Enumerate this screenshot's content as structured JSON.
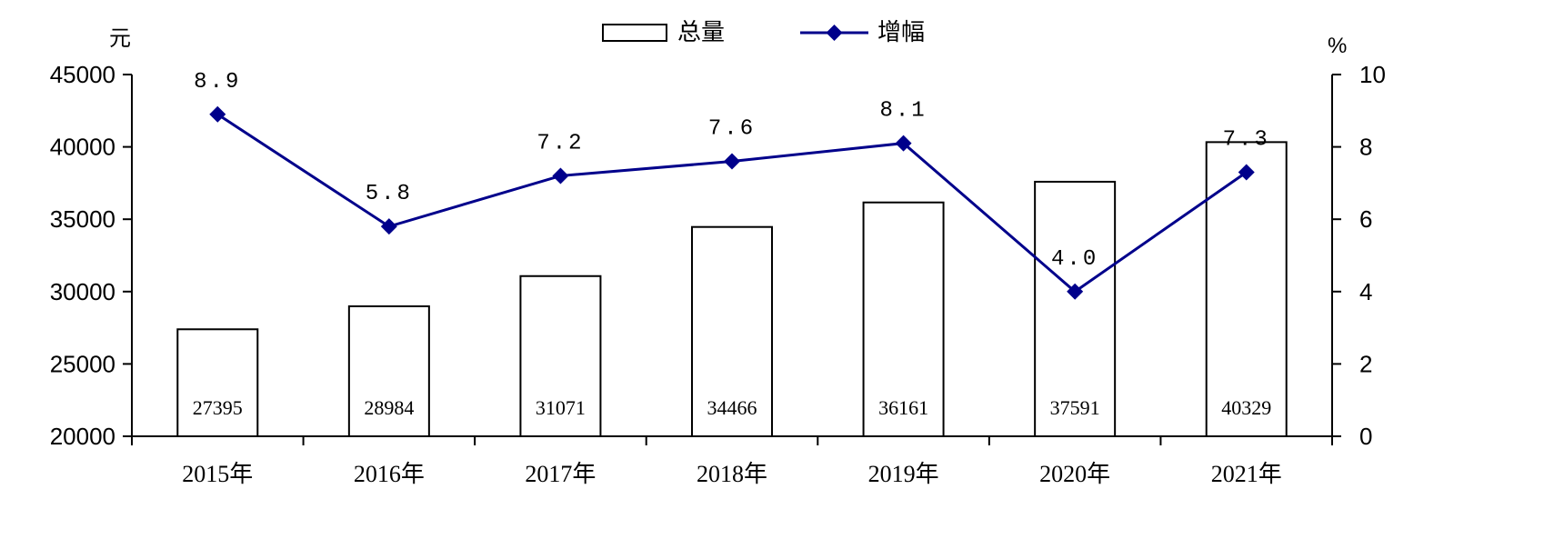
{
  "chart_data": {
    "type": "bar",
    "categories": [
      "2015年",
      "2016年",
      "2017年",
      "2018年",
      "2019年",
      "2020年",
      "2021年"
    ],
    "left_axis": {
      "unit": "元",
      "ylim": [
        20000,
        45000
      ],
      "ticks": [
        20000,
        25000,
        30000,
        35000,
        40000,
        45000
      ]
    },
    "right_axis": {
      "unit": "%",
      "ylim": [
        0,
        10
      ],
      "ticks": [
        0,
        2,
        4,
        6,
        8,
        10
      ]
    },
    "series": [
      {
        "name": "总量",
        "type": "bar",
        "axis": "left",
        "values": [
          27395,
          28984,
          31071,
          34466,
          36161,
          37591,
          40329
        ],
        "labels": [
          "27395",
          "28984",
          "31071",
          "34466",
          "36161",
          "37591",
          "40329"
        ],
        "fill": "#ffffff",
        "stroke": "#000000"
      },
      {
        "name": "增幅",
        "type": "line",
        "axis": "right",
        "values": [
          8.9,
          5.8,
          7.2,
          7.6,
          8.1,
          4.0,
          7.3
        ],
        "labels": [
          "8.9",
          "5.8",
          "7.2",
          "7.6",
          "8.1",
          "4.0",
          "7.3"
        ],
        "color": "#00008b"
      }
    ],
    "legend": {
      "position": "top-center"
    },
    "grid": false
  }
}
